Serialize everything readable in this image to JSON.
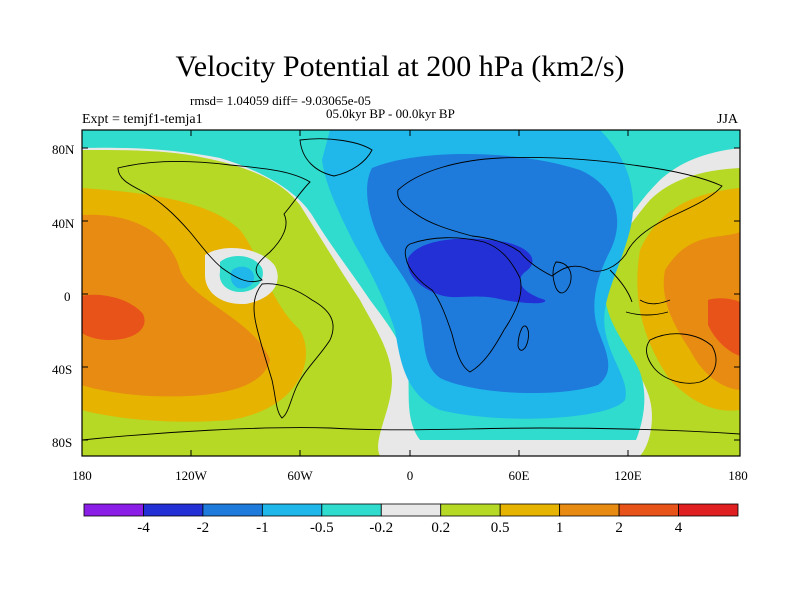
{
  "header": {
    "title": "Velocity Potential at 200 hPa (km2/s)",
    "stats": "rmsd= 1.04059 diff= -9.03065e-05",
    "period": "05.0kyr BP - 00.0kyr BP",
    "experiment": "Expt = temjf1-temja1",
    "season": "JJA"
  },
  "axes": {
    "y_ticks": [
      "80N",
      "40N",
      "0",
      "40S",
      "80S"
    ],
    "x_ticks": [
      "180",
      "120W",
      "60W",
      "0",
      "60E",
      "120E",
      "180"
    ]
  },
  "colorbar": {
    "colors": [
      "#8a1ee6",
      "#2230d6",
      "#1e7bdc",
      "#20b8ea",
      "#2fdccd",
      "#e8e8e8",
      "#b5d925",
      "#e6b300",
      "#e88b12",
      "#e8531a",
      "#e02020"
    ],
    "labels": [
      "-4",
      "-2",
      "-1",
      "-0.5",
      "-0.2",
      "0.2",
      "0.5",
      "1",
      "2",
      "4"
    ]
  }
}
